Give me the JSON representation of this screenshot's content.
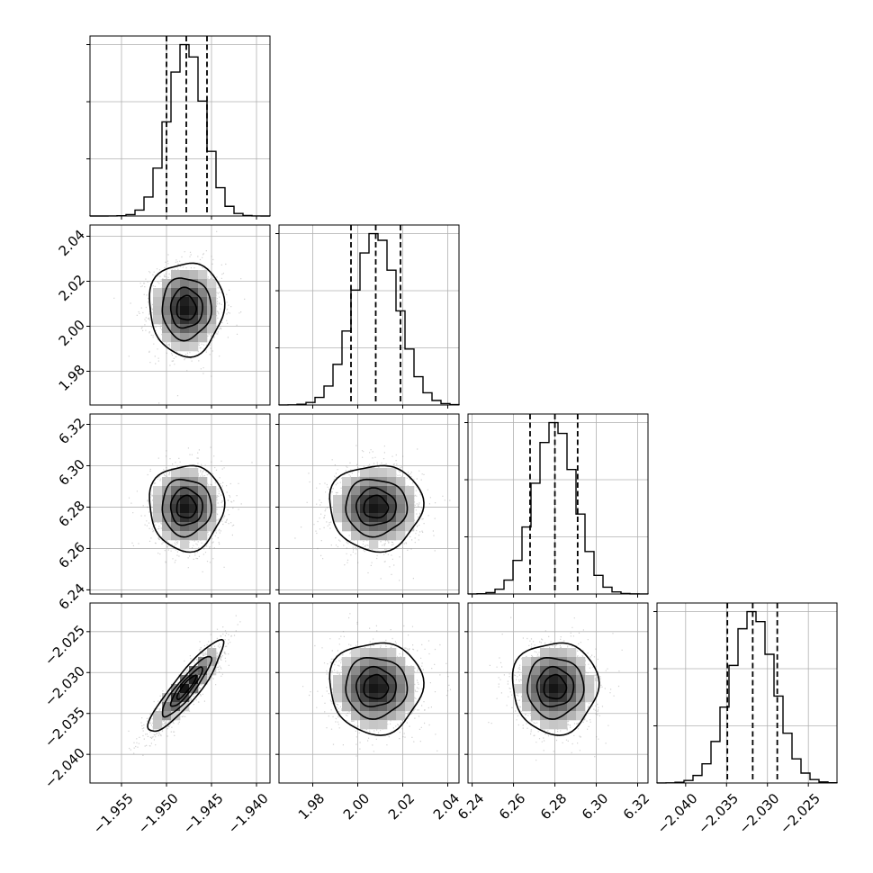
{
  "chart_data": {
    "type": "corner",
    "title": "",
    "grid": true,
    "parameters": [
      {
        "index": 0,
        "range": [
          -1.9585,
          -1.9385
        ],
        "mean": -1.9478,
        "sd": 0.002,
        "quantiles": [
          -1.95,
          -1.9478,
          -1.9455
        ],
        "ticks": [
          -1.955,
          -1.95,
          -1.945,
          -1.94
        ],
        "tick_labels": [
          "−1.955",
          "−1.950",
          "−1.945",
          "−1.940"
        ]
      },
      {
        "index": 1,
        "range": [
          1.965,
          2.045
        ],
        "mean": 2.008,
        "sd": 0.01,
        "quantiles": [
          1.997,
          2.008,
          2.019
        ],
        "ticks": [
          1.98,
          2.0,
          2.02,
          2.04
        ],
        "tick_labels": [
          "1.98",
          "2.00",
          "2.02",
          "2.04"
        ]
      },
      {
        "index": 2,
        "range": [
          6.238,
          6.325
        ],
        "mean": 6.28,
        "sd": 0.01,
        "quantiles": [
          6.268,
          6.28,
          6.291
        ],
        "ticks": [
          6.24,
          6.26,
          6.28,
          6.3,
          6.32
        ],
        "tick_labels": [
          "6.24",
          "6.26",
          "6.28",
          "6.30",
          "6.32"
        ]
      },
      {
        "index": 3,
        "range": [
          -2.0435,
          -2.0215
        ],
        "mean": -2.0318,
        "sd": 0.0027,
        "quantiles": [
          -2.0349,
          -2.0318,
          -2.0288
        ],
        "ticks": [
          -2.04,
          -2.035,
          -2.03,
          -2.025
        ],
        "tick_labels": [
          "−2.040",
          "−2.035",
          "−2.030",
          "−2.025"
        ]
      }
    ],
    "correlations": [
      {
        "x": 0,
        "y": 1,
        "rho": 0.0
      },
      {
        "x": 0,
        "y": 2,
        "rho": 0.0
      },
      {
        "x": 1,
        "y": 2,
        "rho": 0.0
      },
      {
        "x": 0,
        "y": 3,
        "rho": 0.9
      },
      {
        "x": 1,
        "y": 3,
        "rho": 0.0
      },
      {
        "x": 2,
        "y": 3,
        "rho": 0.0
      }
    ],
    "diagonal_hist_y_ticks": 3
  }
}
